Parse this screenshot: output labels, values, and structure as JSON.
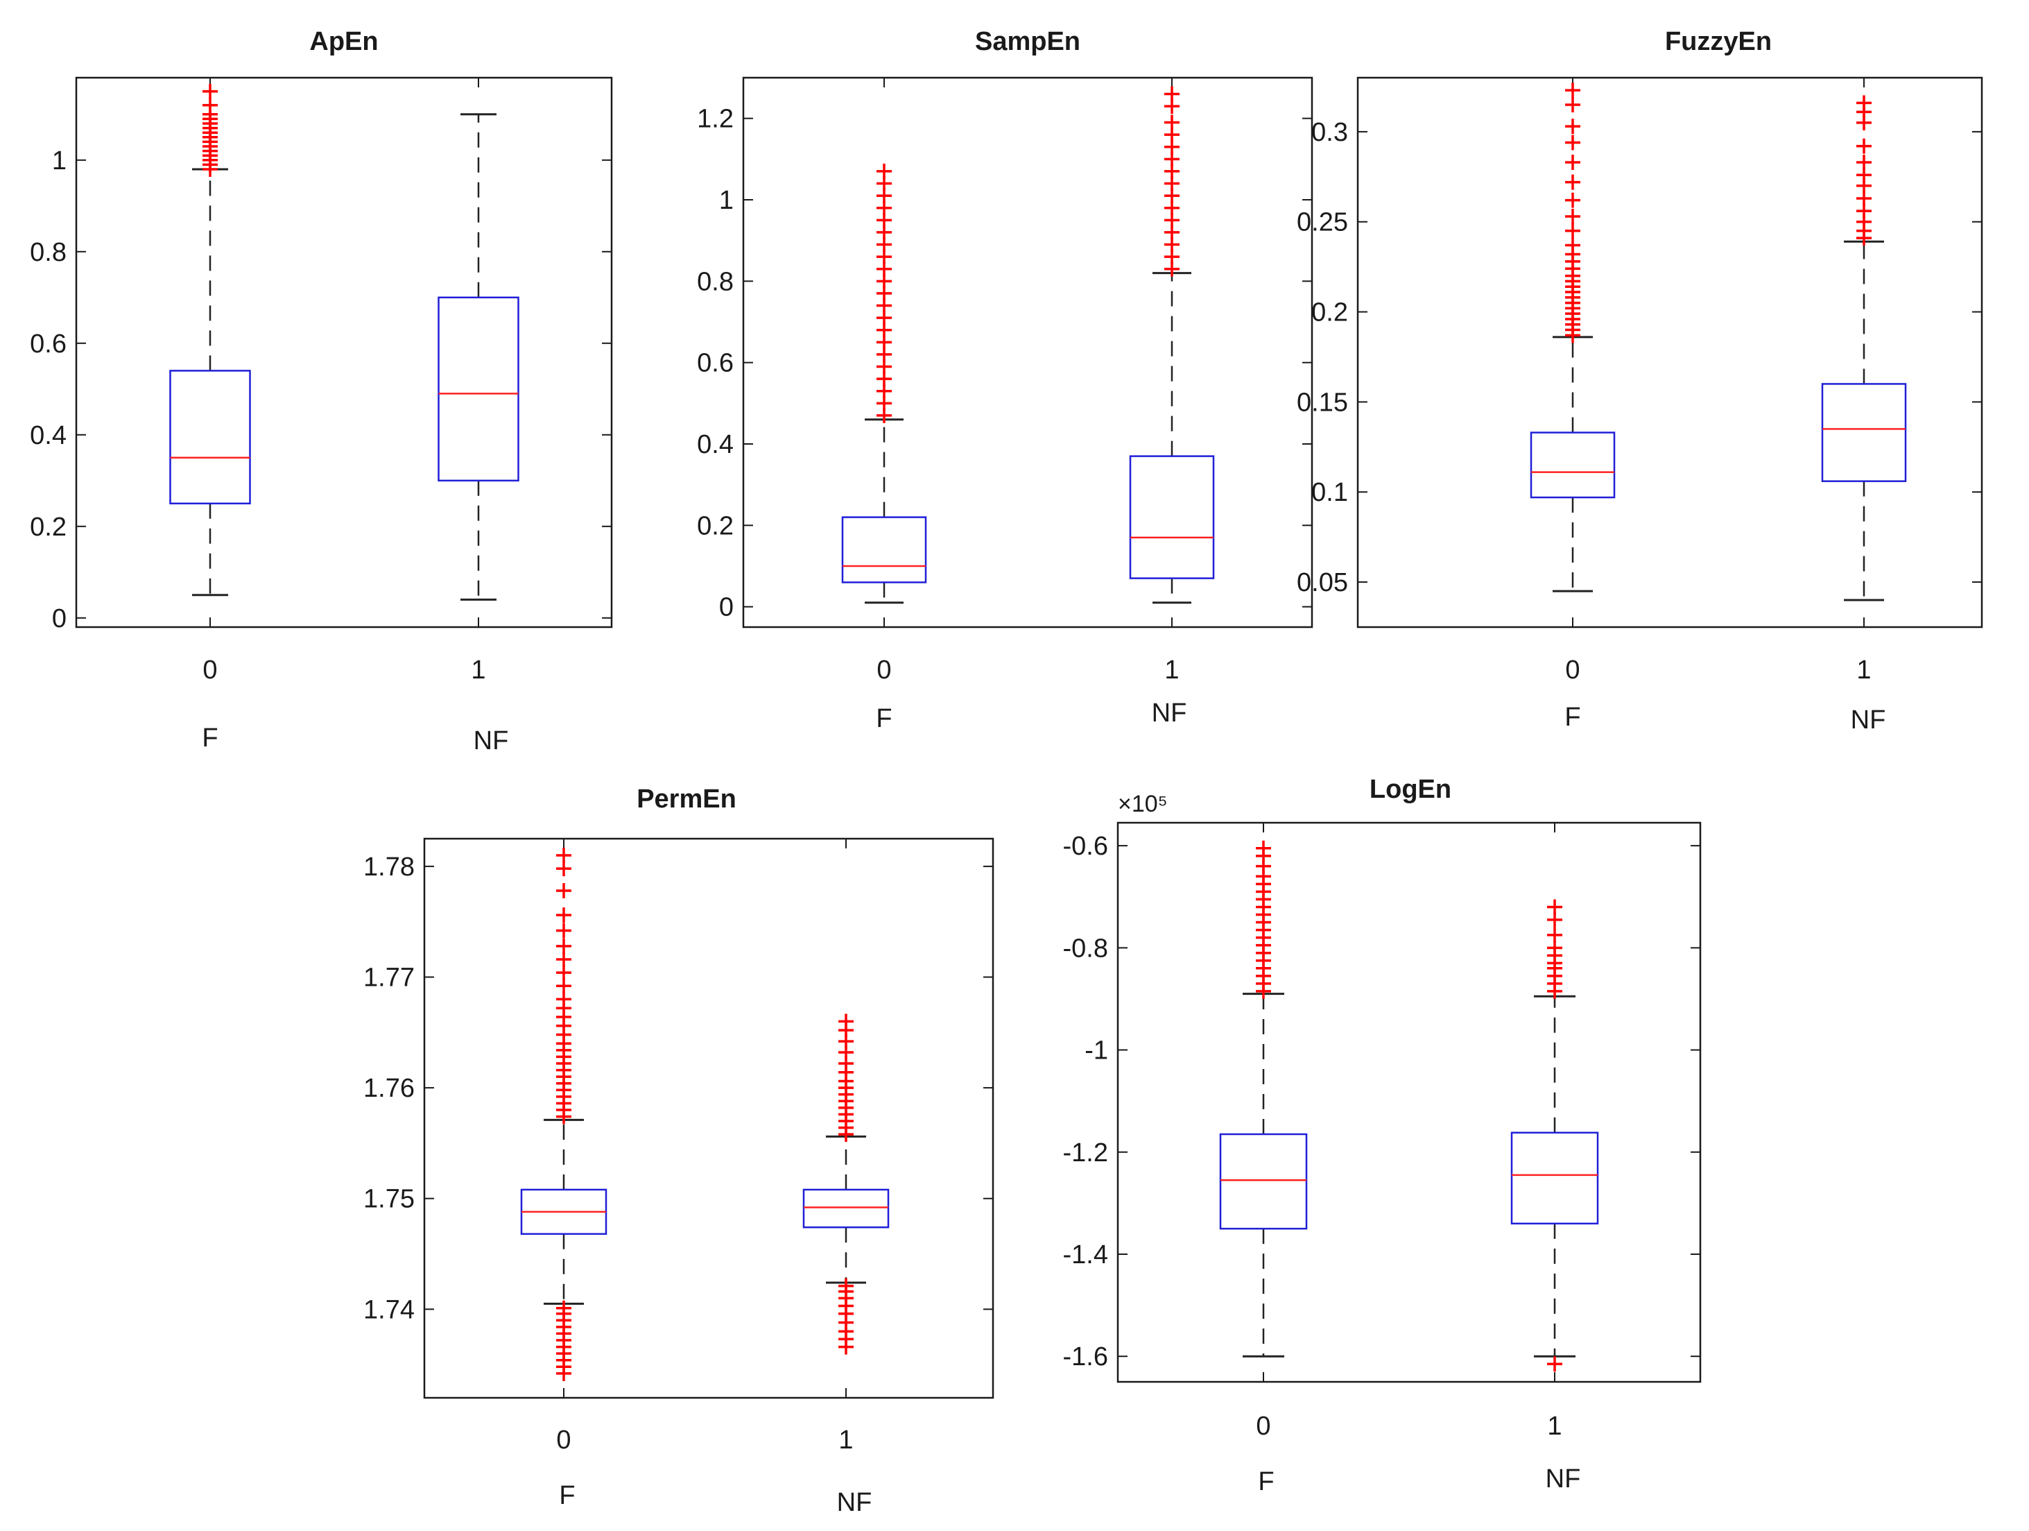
{
  "chart_data": [
    {
      "type": "box",
      "title": "ApEn",
      "ylim": [
        -0.02,
        1.18
      ],
      "yticks": [
        0,
        0.2,
        0.4,
        0.6,
        0.8,
        1
      ],
      "ytick_labels": [
        "0",
        "0.2",
        "0.4",
        "0.6",
        "0.8",
        "1"
      ],
      "exponent": "",
      "groups": [
        {
          "tick": "0",
          "label": "F",
          "whisker_low": 0.05,
          "q1": 0.25,
          "median": 0.35,
          "q3": 0.54,
          "whisker_high": 0.98,
          "outliers": [
            0.98,
            0.99,
            1.0,
            1.01,
            1.02,
            1.03,
            1.04,
            1.05,
            1.06,
            1.07,
            1.08,
            1.09,
            1.1,
            1.12,
            1.15
          ]
        },
        {
          "tick": "1",
          "label": "NF",
          "whisker_low": 0.04,
          "q1": 0.3,
          "median": 0.49,
          "q3": 0.7,
          "whisker_high": 1.1,
          "outliers": []
        }
      ]
    },
    {
      "type": "box",
      "title": "SampEn",
      "ylim": [
        -0.05,
        1.3
      ],
      "yticks": [
        0,
        0.2,
        0.4,
        0.6,
        0.8,
        1,
        1.2
      ],
      "ytick_labels": [
        "0",
        "0.2",
        "0.4",
        "0.6",
        "0.8",
        "1",
        "1.2"
      ],
      "exponent": "",
      "groups": [
        {
          "tick": "0",
          "label": "F",
          "whisker_low": 0.01,
          "q1": 0.06,
          "median": 0.1,
          "q3": 0.22,
          "whisker_high": 0.46,
          "outliers": [
            0.47,
            0.5,
            0.53,
            0.56,
            0.59,
            0.62,
            0.65,
            0.68,
            0.71,
            0.74,
            0.77,
            0.8,
            0.83,
            0.86,
            0.89,
            0.92,
            0.95,
            0.98,
            1.01,
            1.04,
            1.07
          ]
        },
        {
          "tick": "1",
          "label": "NF",
          "whisker_low": 0.01,
          "q1": 0.07,
          "median": 0.17,
          "q3": 0.37,
          "whisker_high": 0.82,
          "outliers": [
            0.83,
            0.86,
            0.89,
            0.92,
            0.95,
            0.98,
            1.01,
            1.04,
            1.07,
            1.1,
            1.13,
            1.16,
            1.19,
            1.23,
            1.26
          ]
        }
      ]
    },
    {
      "type": "box",
      "title": "FuzzyEn",
      "ylim": [
        0.025,
        0.33
      ],
      "yticks": [
        0.05,
        0.1,
        0.15,
        0.2,
        0.25,
        0.3
      ],
      "ytick_labels": [
        "0.05",
        "0.1",
        "0.15",
        "0.2",
        "0.25",
        "0.3"
      ],
      "exponent": "",
      "groups": [
        {
          "tick": "0",
          "label": "F",
          "whisker_low": 0.045,
          "q1": 0.097,
          "median": 0.111,
          "q3": 0.133,
          "whisker_high": 0.186,
          "outliers": [
            0.187,
            0.19,
            0.193,
            0.196,
            0.199,
            0.202,
            0.205,
            0.208,
            0.211,
            0.214,
            0.217,
            0.22,
            0.224,
            0.228,
            0.232,
            0.237,
            0.245,
            0.253,
            0.262,
            0.272,
            0.283,
            0.294,
            0.303,
            0.315,
            0.323
          ]
        },
        {
          "tick": "1",
          "label": "NF",
          "whisker_low": 0.04,
          "q1": 0.106,
          "median": 0.135,
          "q3": 0.16,
          "whisker_high": 0.239,
          "outliers": [
            0.241,
            0.245,
            0.25,
            0.256,
            0.263,
            0.27,
            0.276,
            0.283,
            0.292,
            0.305,
            0.311,
            0.316
          ]
        }
      ]
    },
    {
      "type": "box",
      "title": "PermEn",
      "ylim": [
        1.732,
        1.7825
      ],
      "yticks": [
        1.74,
        1.75,
        1.76,
        1.77,
        1.78
      ],
      "ytick_labels": [
        "1.74",
        "1.75",
        "1.76",
        "1.77",
        "1.78"
      ],
      "exponent": "",
      "groups": [
        {
          "tick": "0",
          "label": "F",
          "whisker_low": 1.7405,
          "q1": 1.7468,
          "median": 1.7488,
          "q3": 1.7508,
          "whisker_high": 1.7571,
          "outliers": [
            1.7342,
            1.7348,
            1.7354,
            1.736,
            1.7366,
            1.7372,
            1.7378,
            1.7384,
            1.739,
            1.7396,
            1.7401,
            1.7574,
            1.758,
            1.7586,
            1.7592,
            1.7598,
            1.7604,
            1.761,
            1.7616,
            1.7622,
            1.7628,
            1.7634,
            1.764,
            1.7648,
            1.7656,
            1.7664,
            1.7672,
            1.768,
            1.7692,
            1.7704,
            1.7716,
            1.7728,
            1.7742,
            1.7756,
            1.7778,
            1.7798,
            1.781
          ]
        },
        {
          "tick": "1",
          "label": "NF",
          "whisker_low": 1.7424,
          "q1": 1.7474,
          "median": 1.7492,
          "q3": 1.7508,
          "whisker_high": 1.7556,
          "outliers": [
            1.7366,
            1.7373,
            1.738,
            1.7388,
            1.7396,
            1.7403,
            1.741,
            1.7416,
            1.7421,
            1.7558,
            1.7564,
            1.757,
            1.7576,
            1.7582,
            1.7588,
            1.7594,
            1.76,
            1.7606,
            1.7614,
            1.7622,
            1.7632,
            1.7642,
            1.7652,
            1.766
          ]
        }
      ]
    },
    {
      "type": "box",
      "title": "LogEn",
      "ylim": [
        -1.65,
        -0.555
      ],
      "yticks": [
        -1.6,
        -1.4,
        -1.2,
        -1,
        -0.8,
        -0.6
      ],
      "ytick_labels": [
        "-1.6",
        "-1.4",
        "-1.2",
        "-1",
        "-0.8",
        "-0.6"
      ],
      "exponent": "×10⁵",
      "groups": [
        {
          "tick": "0",
          "label": "F",
          "whisker_low": -1.6,
          "q1": -1.35,
          "median": -1.255,
          "q3": -1.165,
          "whisker_high": -0.89,
          "outliers": [
            -0.885,
            -0.87,
            -0.855,
            -0.84,
            -0.825,
            -0.81,
            -0.795,
            -0.78,
            -0.765,
            -0.75,
            -0.735,
            -0.72,
            -0.705,
            -0.69,
            -0.675,
            -0.66,
            -0.64,
            -0.62,
            -0.605
          ]
        },
        {
          "tick": "1",
          "label": "NF",
          "whisker_low": -1.6,
          "q1": -1.34,
          "median": -1.245,
          "q3": -1.162,
          "whisker_high": -0.895,
          "outliers": [
            -1.615,
            -0.885,
            -0.87,
            -0.855,
            -0.84,
            -0.83,
            -0.815,
            -0.8,
            -0.775,
            -0.745,
            -0.72
          ]
        }
      ]
    }
  ],
  "colors": {
    "axis": "#1a1a1a",
    "box": "#1f1fd8",
    "median": "#ff2020",
    "whisker": "#222222",
    "outlier": "#ff0000"
  }
}
